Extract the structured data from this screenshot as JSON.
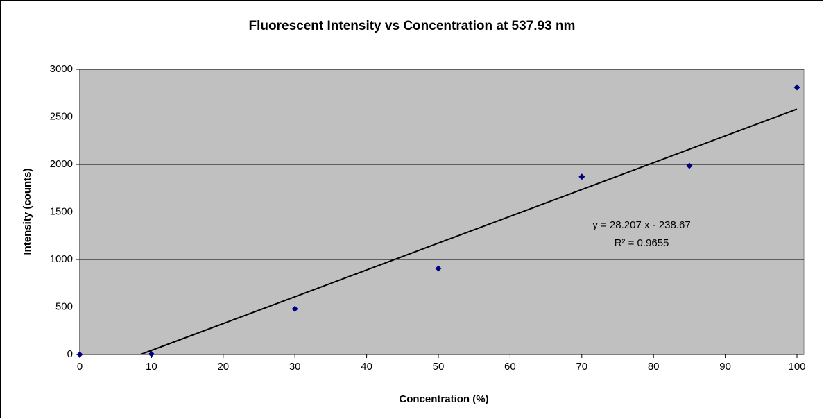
{
  "chart_data": {
    "type": "scatter",
    "title": "Fluorescent Intensity vs Concentration at 537.93 nm",
    "x_label": "Concentration (%)",
    "y_label": "Intensity (counts)",
    "series": [
      {
        "name": "Intensity",
        "color": "#000080",
        "x": [
          0,
          10,
          30,
          50,
          70,
          85,
          100
        ],
        "values": [
          0,
          5,
          480,
          905,
          1870,
          1985,
          2810
        ]
      }
    ],
    "trendline": {
      "slope": 28.207,
      "intercept": -238.67,
      "color": "#000000",
      "equation": "y = 28.207 x - 238.67",
      "r_squared": "R² = 0.9655"
    },
    "xlim": [
      0,
      100
    ],
    "xticks": [
      0,
      10,
      20,
      30,
      40,
      50,
      60,
      70,
      80,
      90,
      100
    ],
    "ylim": [
      0,
      3000
    ],
    "yticks": [
      0,
      500,
      1000,
      1500,
      2000,
      2500,
      3000
    ],
    "grid": true,
    "plot_background": "#c0c0c0"
  }
}
